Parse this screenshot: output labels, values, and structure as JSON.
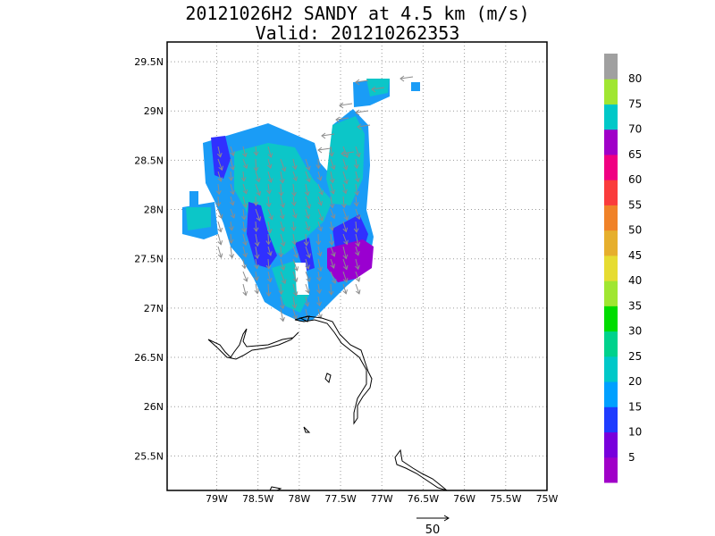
{
  "title": {
    "line1": "20121026H2 SANDY at 4.5 km (m/s)",
    "line2": "Valid: 201210262353"
  },
  "map": {
    "lon_range": [
      -79.6,
      -75.0
    ],
    "lat_range": [
      25.15,
      29.7
    ],
    "lat_ticks": [
      {
        "value": 29.5,
        "label": "29.5N"
      },
      {
        "value": 29.0,
        "label": "29N"
      },
      {
        "value": 28.5,
        "label": "28.5N"
      },
      {
        "value": 28.0,
        "label": "28N"
      },
      {
        "value": 27.5,
        "label": "27.5N"
      },
      {
        "value": 27.0,
        "label": "27N"
      },
      {
        "value": 26.5,
        "label": "26.5N"
      },
      {
        "value": 26.0,
        "label": "26N"
      },
      {
        "value": 25.5,
        "label": "25.5N"
      }
    ],
    "lon_ticks": [
      {
        "value": -79.0,
        "label": "79W"
      },
      {
        "value": -78.5,
        "label": "78.5W"
      },
      {
        "value": -78.0,
        "label": "78W"
      },
      {
        "value": -77.5,
        "label": "77.5W"
      },
      {
        "value": -77.0,
        "label": "77W"
      },
      {
        "value": -76.5,
        "label": "76.5W"
      },
      {
        "value": -76.0,
        "label": "76W"
      },
      {
        "value": -75.5,
        "label": "75.5W"
      },
      {
        "value": -75.0,
        "label": "75W"
      }
    ],
    "grid": "dotted",
    "wind_field_colors": {
      "5-10": "#9a00d0",
      "10-15": "#3030ff",
      "15-20": "#1a9cf6",
      "20-25": "#0cc6c8",
      "25-30": "#22c8a0"
    }
  },
  "colorbar": {
    "labels": [
      "5",
      "10",
      "15",
      "20",
      "25",
      "30",
      "35",
      "40",
      "45",
      "50",
      "55",
      "60",
      "65",
      "70",
      "75",
      "80"
    ],
    "colors": [
      "#a000c8",
      "#7800dc",
      "#1e3cff",
      "#00a0ff",
      "#00c8c8",
      "#00d28c",
      "#00dc00",
      "#a0e632",
      "#e6dc32",
      "#e6af2d",
      "#f08228",
      "#fa3c3c",
      "#f00082",
      "#a000c8",
      "#00c8c8",
      "#a0e632",
      "#a0a0a0"
    ]
  },
  "reference_vector": {
    "label": "50"
  }
}
